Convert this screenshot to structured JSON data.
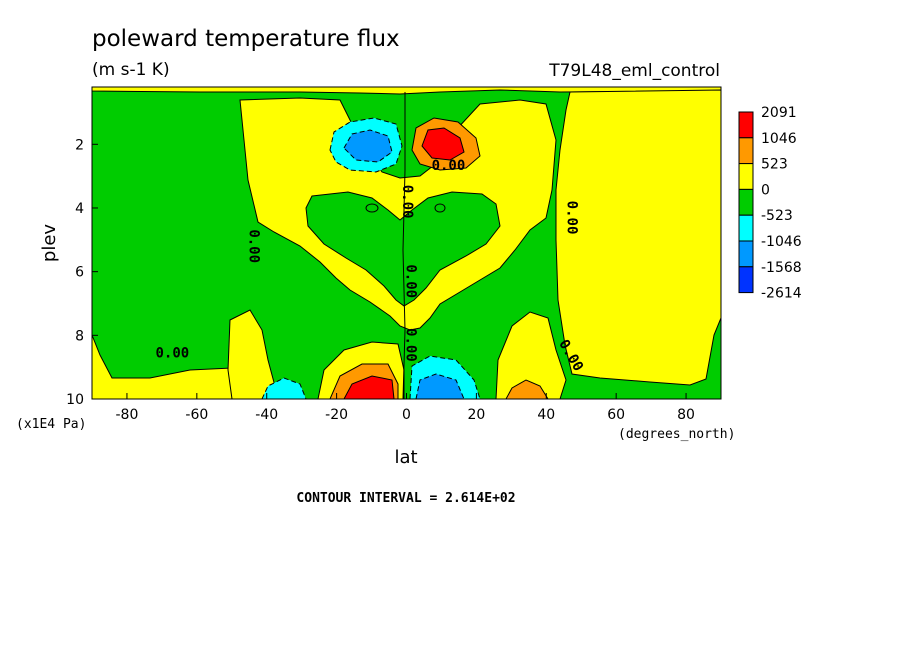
{
  "chart_data": {
    "type": "heatmap",
    "subtype": "filled-contour",
    "title": "poleward temperature flux",
    "units": "(m s-1 K)",
    "experiment": "T79L48_eml_control",
    "xlabel": "lat",
    "x_units": "(degrees_north)",
    "ylabel": "plev",
    "y_units": "(x1E4 Pa)",
    "xlim": [
      -90,
      90
    ],
    "ylim": [
      10,
      0.2
    ],
    "x_ticks": [
      "-80",
      "-60",
      "-40",
      "-20",
      "0",
      "20",
      "40",
      "60",
      "80"
    ],
    "y_ticks": [
      "2",
      "4",
      "6",
      "8",
      "10"
    ],
    "contour_interval_text": "CONTOUR INTERVAL = 2.614E+02",
    "contour_labels": [
      "0.00",
      "0.00",
      "0.00",
      "0.00",
      "0.00",
      "0.00",
      "0.00",
      "0.00"
    ],
    "colorbar": {
      "labels": [
        "2091",
        "1046",
        "523",
        "0",
        "-523",
        "-1046",
        "-1568",
        "-2614"
      ],
      "colors": [
        "#ff0000",
        "#ff9900",
        "#ffff00",
        "#00cc00",
        "#00ffff",
        "#0099ff",
        "#0033ff"
      ]
    },
    "features": [
      {
        "lat": -9,
        "plev": 2.0,
        "value": -1400
      },
      {
        "lat": 10,
        "plev": 2.0,
        "value": 1600
      },
      {
        "lat": -8,
        "plev": 9.6,
        "value": 1800
      },
      {
        "lat": 8,
        "plev": 9.6,
        "value": -1300
      },
      {
        "lat": -34,
        "plev": 9.8,
        "value": -700
      },
      {
        "lat": 33,
        "plev": 9.8,
        "value": 700
      }
    ]
  }
}
